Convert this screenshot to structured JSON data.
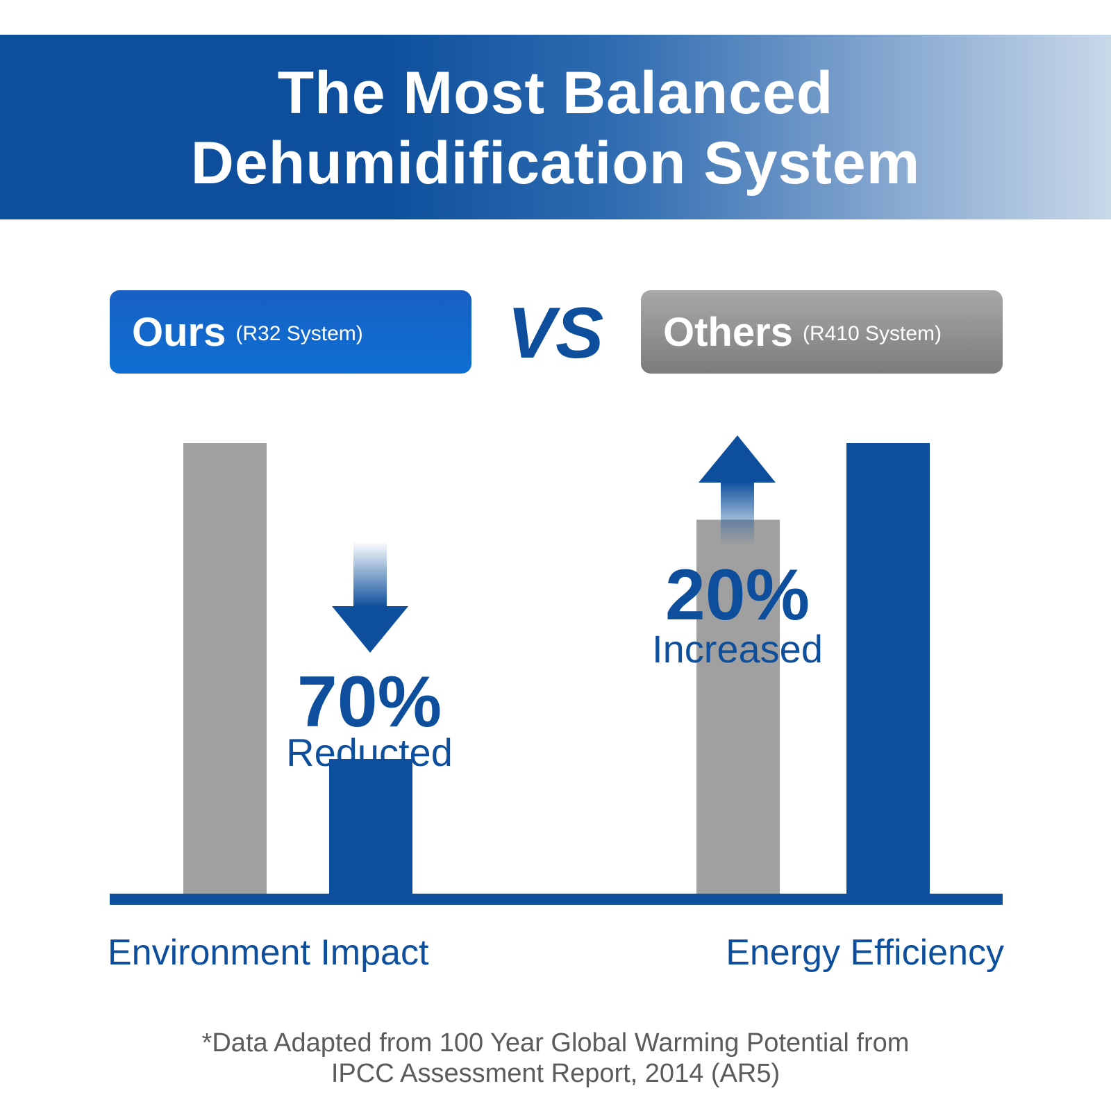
{
  "title": {
    "line1": "The Most Balanced",
    "line2": "Dehumidification System"
  },
  "legend": {
    "ours": {
      "label": "Ours",
      "sub": "(R32 System)",
      "color": "#0d4f9c"
    },
    "vs": "VS",
    "others": {
      "label": "Others",
      "sub": "(R410 System)",
      "color": "#a0a0a0"
    }
  },
  "chart_data": {
    "type": "bar",
    "categories": [
      "Environment Impact",
      "Energy Efficiency"
    ],
    "series": [
      {
        "name": "Others",
        "color": "#a0a0a0",
        "values": [
          100,
          83
        ]
      },
      {
        "name": "Ours",
        "color": "#0d4f9c",
        "values": [
          30,
          100
        ]
      }
    ],
    "annotations": [
      {
        "category": "Environment Impact",
        "direction": "down",
        "value": "70%",
        "label": "Reducted"
      },
      {
        "category": "Energy Efficiency",
        "direction": "up",
        "value": "20%",
        "label": "Increased"
      }
    ],
    "ylim": [
      0,
      100
    ],
    "grid": false,
    "axes_ticks": false
  },
  "footnote": {
    "line1": "*Data Adapted from 100 Year Global Warming Potential from",
    "line2": "IPCC Assessment Report, 2014 (AR5)"
  }
}
